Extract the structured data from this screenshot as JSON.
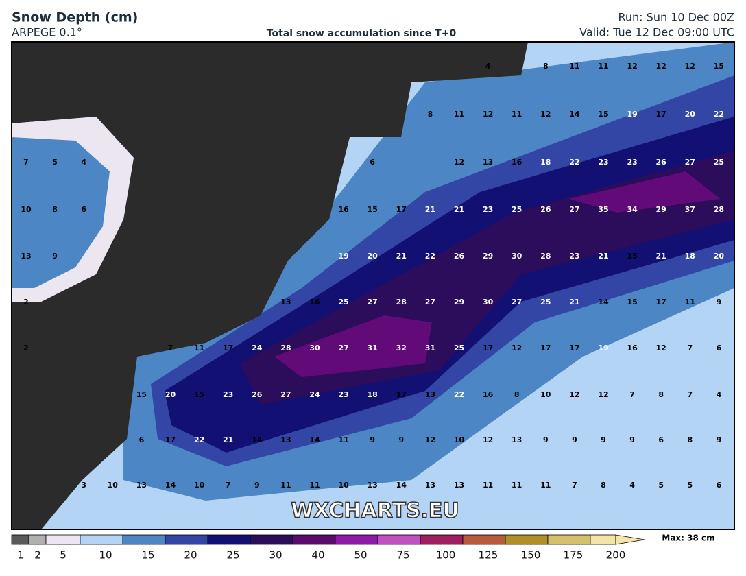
{
  "header": {
    "title": "Snow Depth (cm)",
    "model": "ARPEGE 0.1°",
    "subtitle": "Total snow accumulation since T+0",
    "run": "Run: Sun 10 Dec 00Z",
    "valid": "Valid: Tue 12 Dec 09:00 UTC"
  },
  "watermark": "WXCHARTS.EU",
  "grid": {
    "rows": [
      [
        null,
        null,
        null,
        null,
        null,
        null,
        null,
        null,
        null,
        null,
        null,
        null,
        null,
        null,
        null,
        null,
        4,
        null,
        8,
        11,
        11,
        12,
        12,
        12,
        15
      ],
      [
        null,
        null,
        null,
        null,
        null,
        null,
        null,
        null,
        null,
        null,
        null,
        null,
        null,
        null,
        8,
        11,
        12,
        11,
        12,
        14,
        15,
        19,
        17,
        20,
        22
      ],
      [
        7,
        5,
        4,
        null,
        null,
        null,
        null,
        null,
        null,
        null,
        null,
        null,
        6,
        null,
        null,
        12,
        13,
        16,
        18,
        22,
        23,
        23,
        26,
        27,
        25
      ],
      [
        10,
        8,
        6,
        null,
        null,
        null,
        null,
        null,
        null,
        null,
        null,
        16,
        15,
        17,
        21,
        21,
        23,
        25,
        26,
        27,
        35,
        34,
        29,
        37,
        28
      ],
      [
        13,
        9,
        null,
        null,
        null,
        null,
        null,
        null,
        null,
        null,
        null,
        19,
        20,
        21,
        22,
        26,
        29,
        30,
        28,
        23,
        21,
        15,
        21,
        18,
        20
      ],
      [
        2,
        null,
        null,
        null,
        null,
        null,
        null,
        null,
        null,
        13,
        16,
        25,
        27,
        28,
        27,
        29,
        30,
        27,
        25,
        21,
        14,
        15,
        17,
        11,
        9
      ],
      [
        2,
        null,
        null,
        null,
        null,
        7,
        11,
        17,
        24,
        28,
        30,
        27,
        31,
        32,
        31,
        25,
        17,
        12,
        17,
        17,
        19,
        16,
        12,
        7,
        6
      ],
      [
        null,
        null,
        null,
        null,
        15,
        20,
        15,
        23,
        26,
        27,
        24,
        23,
        18,
        17,
        13,
        22,
        16,
        8,
        10,
        12,
        12,
        7,
        8,
        7,
        4
      ],
      [
        null,
        null,
        null,
        null,
        6,
        17,
        22,
        21,
        14,
        13,
        14,
        11,
        9,
        9,
        12,
        10,
        12,
        13,
        9,
        9,
        9,
        9,
        6,
        8,
        9
      ],
      [
        null,
        null,
        3,
        10,
        13,
        14,
        10,
        7,
        9,
        11,
        11,
        10,
        13,
        14,
        13,
        13,
        11,
        11,
        11,
        7,
        8,
        4,
        5,
        5,
        6
      ]
    ]
  },
  "colorbar": {
    "levels": [
      1,
      2,
      5,
      10,
      15,
      20,
      25,
      30,
      40,
      50,
      75,
      100,
      125,
      150,
      175,
      200
    ],
    "colors": [
      "#5a5a5a",
      "#b0b0b0",
      "#ece6f0",
      "#b3d4f5",
      "#4c86c4",
      "#3346a6",
      "#131074",
      "#2b0d5c",
      "#5c0a6e",
      "#8e1aa8",
      "#c150c5",
      "#a0205f",
      "#b85a3c",
      "#b08f2a",
      "#d7c06c",
      "#f5e4a8"
    ],
    "max": "Max: 38 cm"
  }
}
